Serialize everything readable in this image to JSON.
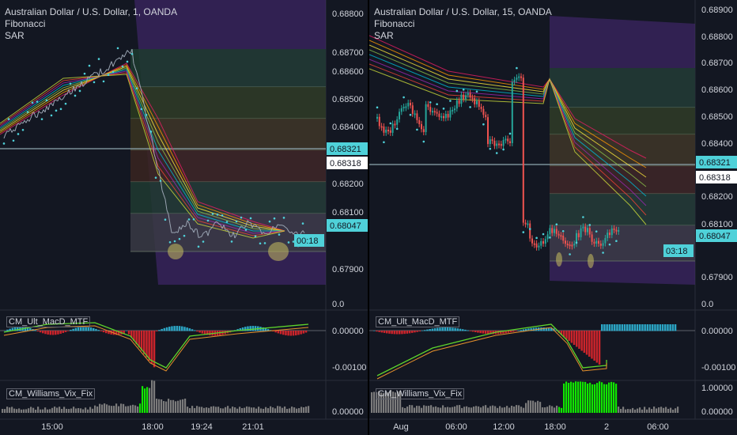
{
  "charts": [
    {
      "title": "Australian Dollar / U.S. Dollar, 1, OANDA",
      "indicators": [
        "Fibonacci",
        "SAR"
      ],
      "price_axis": [
        "0.68800",
        "0.68700",
        "0.68600",
        "0.68500",
        "0.68400",
        "0.68200",
        "0.68100",
        "0.67900"
      ],
      "price_ypos": [
        17,
        66,
        90,
        125,
        160,
        232,
        268,
        340
      ],
      "badges": {
        "bid": "0.68321",
        "ask": "0.68318",
        "last": "0.68047",
        "countdown": "00:18"
      },
      "zero_label": "0.0",
      "macd_label": "CM_Ult_MacD_MTF",
      "macd_axis": [
        "0.00000",
        "-0.00100"
      ],
      "vix_label": "CM_Williams_Vix_Fix",
      "vix_axis": [
        "0.00000"
      ],
      "time_axis": [
        "15:00",
        "18:00",
        "19:24",
        "21:01"
      ]
    },
    {
      "title": "Australian Dollar / U.S. Dollar, 15, OANDA",
      "indicators": [
        "Fibonacci",
        "SAR"
      ],
      "price_axis": [
        "0.68900",
        "0.68800",
        "0.68700",
        "0.68600",
        "0.68500",
        "0.68400",
        "0.68200",
        "0.68100",
        "0.67900"
      ],
      "price_ypos": [
        12,
        46,
        79,
        113,
        147,
        181,
        248,
        283,
        350
      ],
      "badges": {
        "bid": "0.68321",
        "ask": "0.68318",
        "last": "0.68047",
        "countdown": "03:18"
      },
      "zero_label": "0.0",
      "macd_label": "CM_Ult_MacD_MTF",
      "macd_axis": [
        "0.00000",
        "-0.00100"
      ],
      "vix_label": "CM_Williams_Vix_Fix",
      "vix_axis": [
        "1.00000",
        "0.00000"
      ],
      "time_axis": [
        "Aug",
        "06:00",
        "12:00",
        "18:00",
        "2",
        "06:00"
      ]
    }
  ],
  "colors": {
    "background": "#131722",
    "text": "#d1d4dc",
    "axis_badge": "#4fd1d9",
    "badge_text": "#131722",
    "bull": "#26a69a",
    "bear": "#ef5350",
    "sar": "#4fd1d9",
    "macd_green": "#5ed42c",
    "macd_red": "#e0262c",
    "vix_green": "#11e500",
    "vix_gray": "#7b7b7b",
    "fib_purple": "#4a2a7a"
  }
}
